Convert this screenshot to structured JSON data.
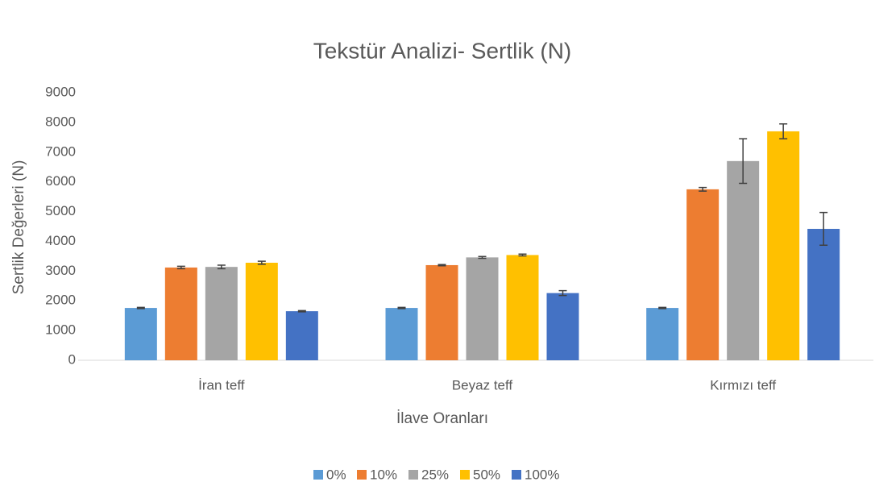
{
  "chart_data": {
    "type": "bar",
    "title": "Tekstür Analizi- Sertlik (N)",
    "x_label": "İlave Oranları",
    "y_label": "Sertlik Değerleri (N)",
    "categories": [
      "İran teff",
      "Beyaz teff",
      "Kırmızı  teff"
    ],
    "series": [
      {
        "name": "0%",
        "color": "#5b9bd5",
        "values": [
          1760,
          1760,
          1760
        ],
        "errors": [
          20,
          20,
          20
        ]
      },
      {
        "name": "10%",
        "color": "#ed7d31",
        "values": [
          3120,
          3200,
          5750
        ],
        "errors": [
          40,
          20,
          60
        ]
      },
      {
        "name": "25%",
        "color": "#a5a5a5",
        "values": [
          3140,
          3460,
          6700
        ],
        "errors": [
          60,
          30,
          750
        ]
      },
      {
        "name": "50%",
        "color": "#ffc000",
        "values": [
          3280,
          3540,
          7700
        ],
        "errors": [
          50,
          30,
          250
        ]
      },
      {
        "name": "100%",
        "color": "#4472c4",
        "values": [
          1650,
          2260,
          4420
        ],
        "errors": [
          20,
          80,
          550
        ]
      }
    ],
    "ylim": [
      0,
      9000
    ],
    "yticks": [
      0,
      1000,
      2000,
      3000,
      4000,
      5000,
      6000,
      7000,
      8000,
      9000
    ],
    "grid": false,
    "legend": "bottom"
  }
}
